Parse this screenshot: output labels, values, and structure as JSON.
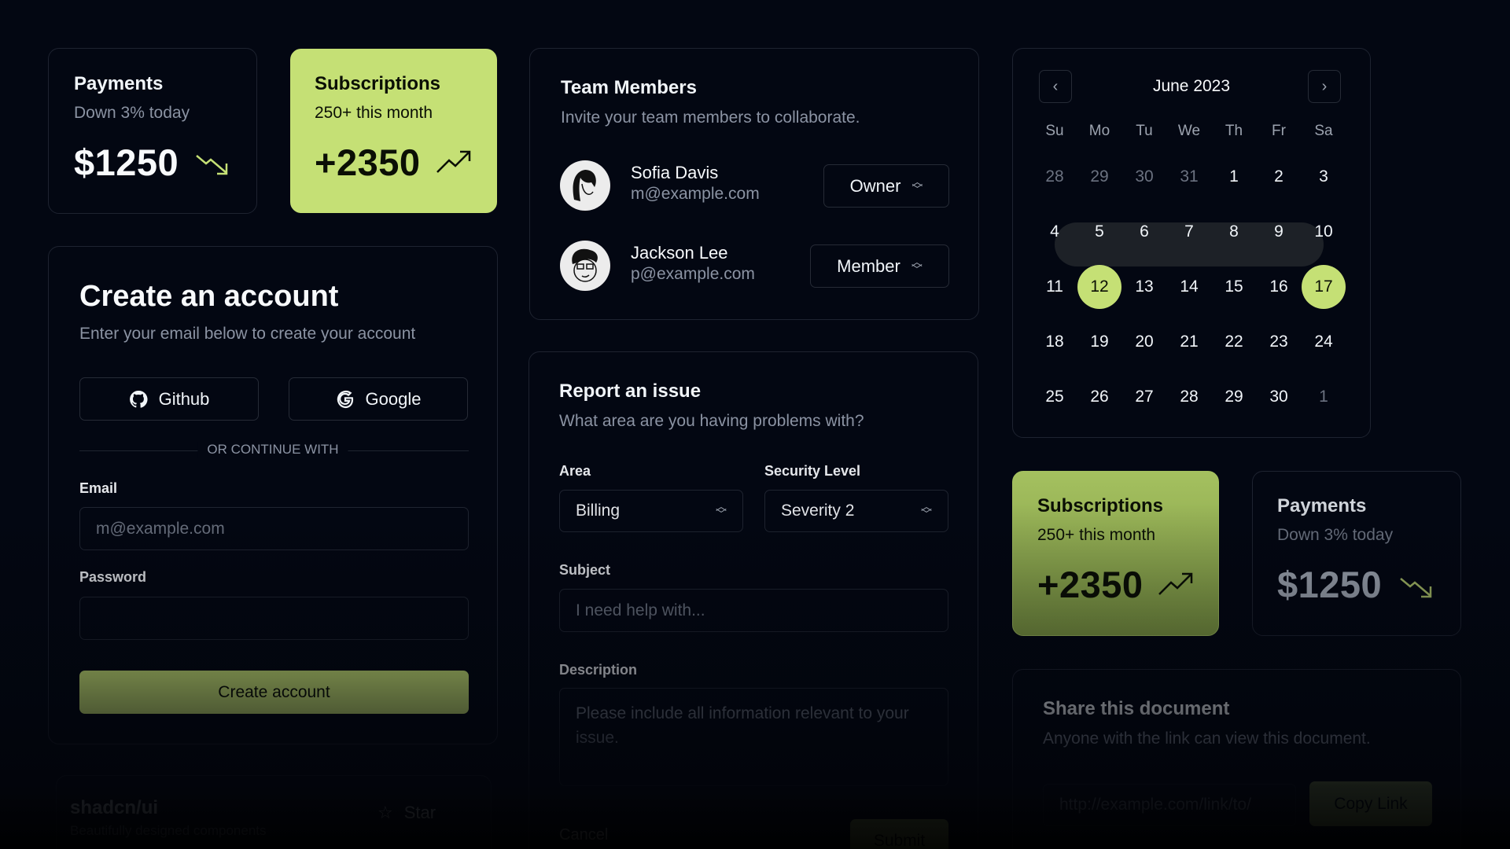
{
  "payments_card": {
    "title": "Payments",
    "subtitle": "Down 3% today",
    "value": "$1250",
    "icon": "trending-down-icon"
  },
  "subscriptions_card": {
    "title": "Subscriptions",
    "subtitle": "250+ this month",
    "value": "+2350",
    "icon": "trending-up-icon"
  },
  "create_account": {
    "title": "Create an account",
    "subtitle": "Enter your email below to create your account",
    "github_label": "Github",
    "google_label": "Google",
    "divider": "OR CONTINUE WITH",
    "email_label": "Email",
    "email_placeholder": "m@example.com",
    "password_label": "Password",
    "password_value": "",
    "submit_label": "Create account"
  },
  "repo_card": {
    "title": "shadcn/ui",
    "subtitle": "Beautifully designed components",
    "star_label": "Star"
  },
  "team": {
    "title": "Team Members",
    "subtitle": "Invite your team members to collaborate.",
    "members": [
      {
        "name": "Sofia Davis",
        "email": "m@example.com",
        "role": "Owner"
      },
      {
        "name": "Jackson Lee",
        "email": "p@example.com",
        "role": "Member"
      }
    ]
  },
  "report": {
    "title": "Report an issue",
    "subtitle": "What area are you having problems with?",
    "area_label": "Area",
    "area_value": "Billing",
    "security_label": "Security Level",
    "security_value": "Severity 2",
    "subject_label": "Subject",
    "subject_placeholder": "I need help with...",
    "description_label": "Description",
    "description_placeholder": "Please include all information relevant to your issue.",
    "cancel_label": "Cancel",
    "submit_label": "Submit"
  },
  "calendar": {
    "month": "June 2023",
    "weekdays": [
      "Su",
      "Mo",
      "Tu",
      "We",
      "Th",
      "Fr",
      "Sa"
    ],
    "weeks": [
      [
        "28",
        "29",
        "30",
        "31",
        "1",
        "2",
        "3"
      ],
      [
        "4",
        "5",
        "6",
        "7",
        "8",
        "9",
        "10"
      ],
      [
        "11",
        "12",
        "13",
        "14",
        "15",
        "16",
        "17"
      ],
      [
        "18",
        "19",
        "20",
        "21",
        "22",
        "23",
        "24"
      ],
      [
        "25",
        "26",
        "27",
        "28",
        "29",
        "30",
        "1"
      ]
    ],
    "range_start": "12",
    "range_end": "17"
  },
  "subscriptions_card_2": {
    "title": "Subscriptions",
    "subtitle": "250+ this month",
    "value": "+2350"
  },
  "payments_card_2": {
    "title": "Payments",
    "subtitle": "Down 3% today",
    "value": "$1250"
  },
  "share": {
    "title": "Share this document",
    "subtitle": "Anyone with the link can view this document.",
    "link": "http://example.com/link/to/",
    "copy_label": "Copy Link"
  },
  "colors": {
    "background": "#030712",
    "accent": "#c5e075",
    "border": "#1e2330"
  }
}
